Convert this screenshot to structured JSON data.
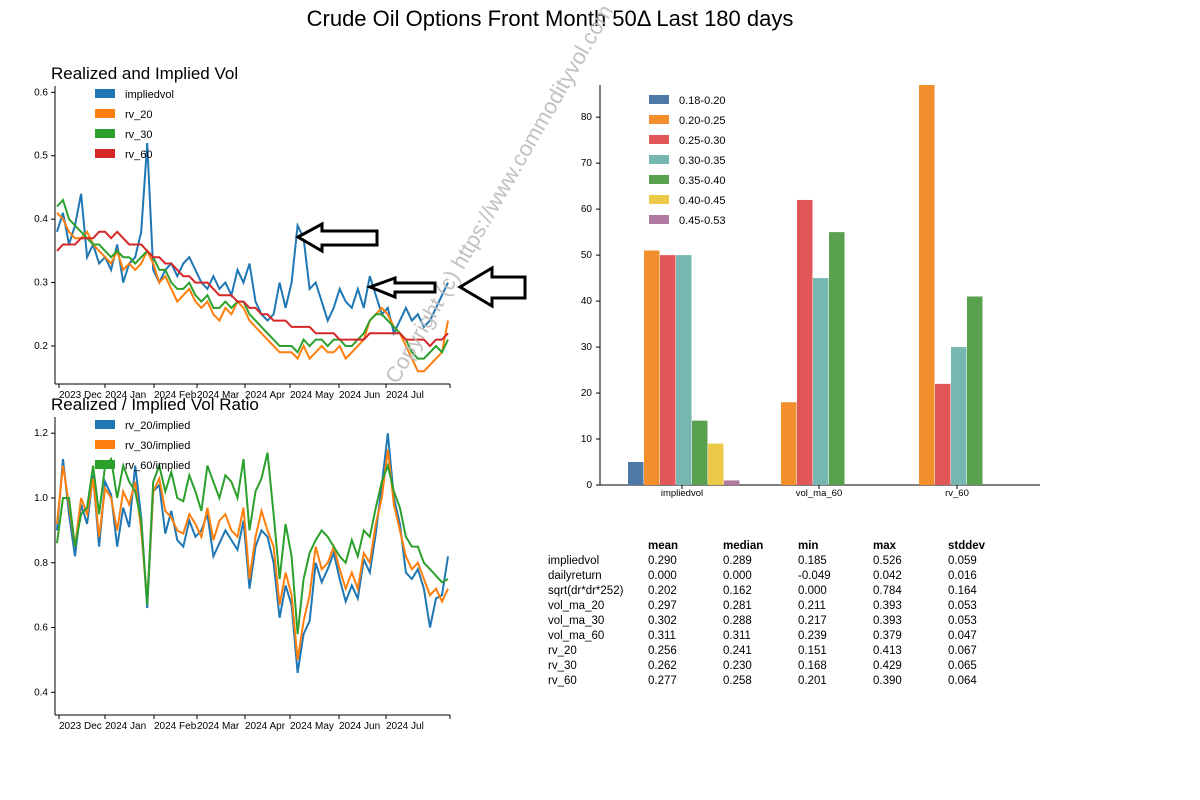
{
  "page": {
    "title": "Crude Oil Options Front Month 50Δ Last 180 days"
  },
  "watermark": "Copyright (c) https://www.commodityvol.com",
  "colors": {
    "impliedvol": "#1f77b4",
    "rv_20": "#ff7f0e",
    "rv_30": "#2ca02c",
    "rv_60": "#d62728",
    "b1": "#4e79a7",
    "b2": "#f28e2b",
    "b3": "#e15759",
    "b4": "#76b7b2",
    "b5": "#59a14f",
    "b6": "#edc948",
    "b7": "#b07aa1"
  },
  "x_ticks": [
    "2023 Dec",
    "2024 Jan",
    "2024 Feb",
    "2024 Mar",
    "2024 Apr",
    "2024 May",
    "2024 Jun",
    "2024 Jul"
  ],
  "chart_data": [
    {
      "type": "line",
      "title": "Realized and Implied Vol",
      "x_range": [
        "2023-11-17",
        "2024-07-31"
      ],
      "ylim": [
        0.14,
        0.61
      ],
      "y_ticks": [
        "0.2",
        "0.3",
        "0.4",
        "0.5",
        "0.6"
      ],
      "legend_position": "top-left",
      "series": [
        {
          "name": "impliedvol",
          "values": [
            0.38,
            0.41,
            0.36,
            0.39,
            0.44,
            0.34,
            0.36,
            0.33,
            0.34,
            0.32,
            0.36,
            0.3,
            0.33,
            0.34,
            0.38,
            0.52,
            0.32,
            0.3,
            0.32,
            0.33,
            0.31,
            0.33,
            0.34,
            0.32,
            0.3,
            0.29,
            0.31,
            0.29,
            0.3,
            0.28,
            0.32,
            0.3,
            0.33,
            0.27,
            0.25,
            0.24,
            0.25,
            0.3,
            0.26,
            0.3,
            0.39,
            0.37,
            0.29,
            0.3,
            0.27,
            0.24,
            0.26,
            0.29,
            0.27,
            0.26,
            0.29,
            0.26,
            0.31,
            0.28,
            0.25,
            0.26,
            0.22,
            0.24,
            0.26,
            0.24,
            0.25,
            0.23,
            0.24,
            0.26,
            0.28,
            0.3
          ]
        },
        {
          "name": "rv_20",
          "values": [
            0.41,
            0.4,
            0.38,
            0.37,
            0.37,
            0.38,
            0.36,
            0.35,
            0.34,
            0.33,
            0.35,
            0.32,
            0.33,
            0.32,
            0.33,
            0.35,
            0.33,
            0.3,
            0.31,
            0.29,
            0.27,
            0.28,
            0.29,
            0.27,
            0.26,
            0.27,
            0.25,
            0.24,
            0.26,
            0.25,
            0.27,
            0.26,
            0.24,
            0.23,
            0.22,
            0.21,
            0.2,
            0.19,
            0.19,
            0.19,
            0.18,
            0.2,
            0.18,
            0.19,
            0.2,
            0.19,
            0.19,
            0.2,
            0.18,
            0.19,
            0.2,
            0.21,
            0.24,
            0.25,
            0.26,
            0.25,
            0.23,
            0.22,
            0.2,
            0.18,
            0.16,
            0.16,
            0.17,
            0.18,
            0.19,
            0.24
          ]
        },
        {
          "name": "rv_30",
          "values": [
            0.42,
            0.43,
            0.4,
            0.39,
            0.38,
            0.37,
            0.36,
            0.36,
            0.35,
            0.34,
            0.35,
            0.34,
            0.34,
            0.33,
            0.34,
            0.35,
            0.34,
            0.32,
            0.32,
            0.3,
            0.29,
            0.29,
            0.3,
            0.28,
            0.27,
            0.28,
            0.26,
            0.26,
            0.27,
            0.26,
            0.27,
            0.27,
            0.25,
            0.24,
            0.23,
            0.22,
            0.21,
            0.2,
            0.2,
            0.2,
            0.19,
            0.21,
            0.2,
            0.21,
            0.21,
            0.2,
            0.21,
            0.21,
            0.2,
            0.2,
            0.21,
            0.22,
            0.24,
            0.25,
            0.25,
            0.24,
            0.23,
            0.22,
            0.21,
            0.19,
            0.18,
            0.18,
            0.19,
            0.2,
            0.19,
            0.21
          ]
        },
        {
          "name": "rv_60",
          "values": [
            0.35,
            0.36,
            0.36,
            0.36,
            0.37,
            0.37,
            0.37,
            0.38,
            0.38,
            0.37,
            0.38,
            0.37,
            0.36,
            0.36,
            0.36,
            0.35,
            0.34,
            0.34,
            0.33,
            0.33,
            0.32,
            0.31,
            0.31,
            0.3,
            0.3,
            0.3,
            0.29,
            0.28,
            0.28,
            0.28,
            0.27,
            0.27,
            0.26,
            0.26,
            0.25,
            0.25,
            0.24,
            0.24,
            0.24,
            0.23,
            0.23,
            0.23,
            0.23,
            0.22,
            0.22,
            0.22,
            0.22,
            0.21,
            0.21,
            0.21,
            0.21,
            0.21,
            0.22,
            0.22,
            0.22,
            0.22,
            0.22,
            0.22,
            0.21,
            0.21,
            0.21,
            0.21,
            0.2,
            0.21,
            0.21,
            0.22
          ]
        }
      ]
    },
    {
      "type": "line",
      "title": "Realized / Implied Vol Ratio",
      "x_range": [
        "2023-11-17",
        "2024-07-31"
      ],
      "ylim": [
        0.33,
        1.25
      ],
      "y_ticks": [
        "0.4",
        "0.6",
        "0.8",
        "1.0",
        "1.2"
      ],
      "legend_position": "top-left",
      "series": [
        {
          "name": "rv_20/implied",
          "values": [
            0.9,
            1.12,
            0.95,
            0.82,
            0.98,
            0.92,
            1.07,
            0.85,
            1.05,
            1.01,
            0.85,
            0.97,
            0.91,
            1.1,
            0.94,
            0.66,
            1.02,
            1.04,
            0.89,
            0.96,
            0.87,
            0.85,
            0.93,
            0.88,
            0.9,
            0.95,
            0.82,
            0.86,
            0.9,
            0.87,
            0.84,
            0.93,
            0.72,
            0.85,
            0.9,
            0.88,
            0.8,
            0.63,
            0.73,
            0.67,
            0.46,
            0.58,
            0.62,
            0.8,
            0.74,
            0.78,
            0.83,
            0.75,
            0.68,
            0.73,
            0.69,
            0.81,
            0.77,
            0.89,
            1.04,
            1.2,
            1.0,
            0.92,
            0.77,
            0.75,
            0.78,
            0.72,
            0.6,
            0.69,
            0.7,
            0.82
          ]
        },
        {
          "name": "rv_30/implied",
          "values": [
            0.92,
            1.1,
            0.98,
            0.85,
            1.0,
            0.95,
            1.06,
            0.88,
            1.03,
            1.0,
            0.9,
            1.02,
            0.98,
            1.05,
            0.9,
            0.68,
            1.02,
            1.06,
            0.96,
            0.94,
            0.9,
            0.89,
            0.95,
            0.92,
            0.88,
            0.97,
            0.87,
            0.93,
            0.95,
            0.9,
            0.88,
            0.97,
            0.75,
            0.88,
            0.96,
            0.9,
            0.85,
            0.67,
            0.77,
            0.7,
            0.5,
            0.62,
            0.7,
            0.85,
            0.78,
            0.8,
            0.85,
            0.78,
            0.72,
            0.77,
            0.72,
            0.83,
            0.8,
            0.92,
            1.0,
            1.15,
            0.98,
            0.9,
            0.82,
            0.78,
            0.8,
            0.75,
            0.7,
            0.72,
            0.68,
            0.72
          ]
        },
        {
          "name": "rv_60/implied",
          "values": [
            0.86,
            1.0,
            1.0,
            0.85,
            0.95,
            0.97,
            1.1,
            0.95,
            1.1,
            1.12,
            1.0,
            1.1,
            1.05,
            1.02,
            0.93,
            0.67,
            1.05,
            1.1,
            1.02,
            1.08,
            1.0,
            0.99,
            1.07,
            1.02,
            0.96,
            1.1,
            1.05,
            1.0,
            1.07,
            1.05,
            1.0,
            1.12,
            0.9,
            1.02,
            1.06,
            1.14,
            0.95,
            0.75,
            0.92,
            0.82,
            0.58,
            0.75,
            0.83,
            0.87,
            0.9,
            0.88,
            0.85,
            0.82,
            0.8,
            0.87,
            0.82,
            0.9,
            0.88,
            0.97,
            1.05,
            1.1,
            1.02,
            0.97,
            0.88,
            0.85,
            0.85,
            0.8,
            0.78,
            0.76,
            0.74,
            0.75
          ]
        }
      ]
    },
    {
      "type": "bar",
      "categories": [
        "impliedvol",
        "vol_ma_60",
        "rv_60"
      ],
      "ylim": [
        0,
        87
      ],
      "y_ticks": [
        "0",
        "10",
        "20",
        "30",
        "40",
        "50",
        "60",
        "70",
        "80"
      ],
      "legend_position": "top-left",
      "series": [
        {
          "name": "0.18-0.20",
          "values": [
            5,
            0,
            0
          ]
        },
        {
          "name": "0.20-0.25",
          "values": [
            51,
            18,
            87
          ]
        },
        {
          "name": "0.25-0.30",
          "values": [
            50,
            62,
            22
          ]
        },
        {
          "name": "0.30-0.35",
          "values": [
            50,
            45,
            30
          ]
        },
        {
          "name": "0.35-0.40",
          "values": [
            14,
            55,
            41
          ]
        },
        {
          "name": "0.40-0.45",
          "values": [
            9,
            0,
            0
          ]
        },
        {
          "name": "0.45-0.53",
          "values": [
            1,
            0,
            0
          ]
        }
      ]
    },
    {
      "type": "table",
      "headers": [
        "",
        "mean",
        "median",
        "min",
        "max",
        "stddev"
      ],
      "rows": [
        [
          "impliedvol",
          "0.290",
          "0.289",
          "0.185",
          "0.526",
          "0.059"
        ],
        [
          "dailyreturn",
          "0.000",
          "0.000",
          "-0.049",
          "0.042",
          "0.016"
        ],
        [
          "sqrt(dr*dr*252)",
          "0.202",
          "0.162",
          "0.000",
          "0.784",
          "0.164"
        ],
        [
          "vol_ma_20",
          "0.297",
          "0.281",
          "0.211",
          "0.393",
          "0.053"
        ],
        [
          "vol_ma_30",
          "0.302",
          "0.288",
          "0.217",
          "0.393",
          "0.053"
        ],
        [
          "vol_ma_60",
          "0.311",
          "0.311",
          "0.239",
          "0.379",
          "0.047"
        ],
        [
          "rv_20",
          "0.256",
          "0.241",
          "0.151",
          "0.413",
          "0.067"
        ],
        [
          "rv_30",
          "0.262",
          "0.230",
          "0.168",
          "0.429",
          "0.065"
        ],
        [
          "rv_60",
          "0.277",
          "0.258",
          "0.201",
          "0.390",
          "0.064"
        ]
      ]
    }
  ]
}
